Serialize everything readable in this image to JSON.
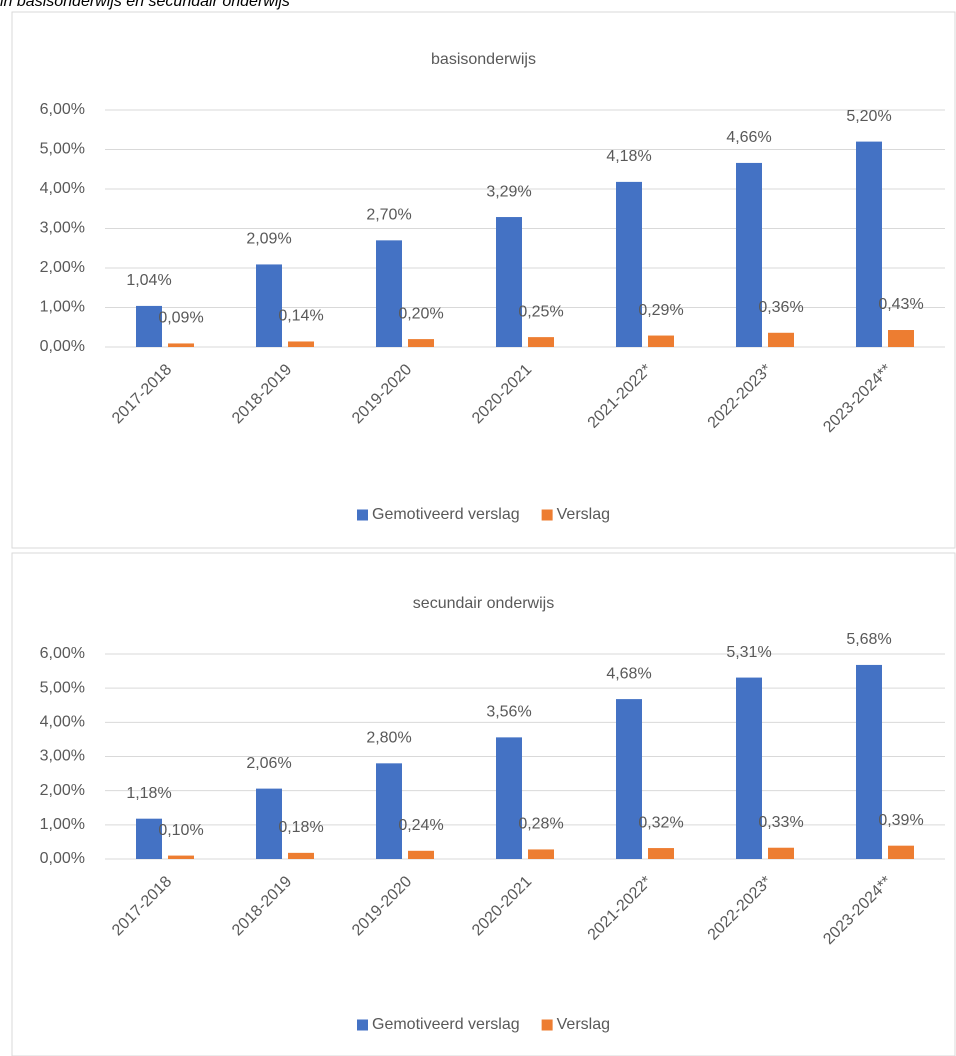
{
  "caption": "in basisonderwijs en secundair onderwijs",
  "chart_data": [
    {
      "type": "bar",
      "title": "basisonderwijs",
      "categories": [
        "2017-2018",
        "2018-2019",
        "2019-2020",
        "2020-2021",
        "2021-2022*",
        "2022-2023*",
        "2023-2024**"
      ],
      "series": [
        {
          "name": "Gemotiveerd verslag",
          "color": "#4472c4",
          "values": [
            1.04,
            2.09,
            2.7,
            3.29,
            4.18,
            4.66,
            5.2
          ],
          "value_labels": [
            "1,04%",
            "2,09%",
            "2,70%",
            "3,29%",
            "4,18%",
            "4,66%",
            "5,20%"
          ]
        },
        {
          "name": "Verslag",
          "color": "#ed7d31",
          "values": [
            0.09,
            0.14,
            0.2,
            0.25,
            0.29,
            0.36,
            0.43
          ],
          "value_labels": [
            "0,09%",
            "0,14%",
            "0,20%",
            "0,25%",
            "0,29%",
            "0,36%",
            "0,43%"
          ]
        }
      ],
      "ylim": [
        0,
        6
      ],
      "yticks": [
        {
          "value": 0,
          "label": "0,00%"
        },
        {
          "value": 1,
          "label": "1,00%"
        },
        {
          "value": 2,
          "label": "2,00%"
        },
        {
          "value": 3,
          "label": "3,00%"
        },
        {
          "value": 4,
          "label": "4,00%"
        },
        {
          "value": 5,
          "label": "5,00%"
        },
        {
          "value": 6,
          "label": "6,00%"
        }
      ],
      "grid": true,
      "legend": "bottom"
    },
    {
      "type": "bar",
      "title": "secundair onderwijs",
      "categories": [
        "2017-2018",
        "2018-2019",
        "2019-2020",
        "2020-2021",
        "2021-2022*",
        "2022-2023*",
        "2023-2024**"
      ],
      "series": [
        {
          "name": "Gemotiveerd verslag",
          "color": "#4472c4",
          "values": [
            1.18,
            2.06,
            2.8,
            3.56,
            4.68,
            5.31,
            5.68
          ],
          "value_labels": [
            "1,18%",
            "2,06%",
            "2,80%",
            "3,56%",
            "4,68%",
            "5,31%",
            "5,68%"
          ]
        },
        {
          "name": "Verslag",
          "color": "#ed7d31",
          "values": [
            0.1,
            0.18,
            0.24,
            0.28,
            0.32,
            0.33,
            0.39
          ],
          "value_labels": [
            "0,10%",
            "0,18%",
            "0,24%",
            "0,28%",
            "0,32%",
            "0,33%",
            "0,39%"
          ]
        }
      ],
      "ylim": [
        0,
        6
      ],
      "yticks": [
        {
          "value": 0,
          "label": "0,00%"
        },
        {
          "value": 1,
          "label": "1,00%"
        },
        {
          "value": 2,
          "label": "2,00%"
        },
        {
          "value": 3,
          "label": "3,00%"
        },
        {
          "value": 4,
          "label": "4,00%"
        },
        {
          "value": 5,
          "label": "5,00%"
        },
        {
          "value": 6,
          "label": "6,00%"
        }
      ],
      "grid": true,
      "legend": "bottom"
    }
  ]
}
